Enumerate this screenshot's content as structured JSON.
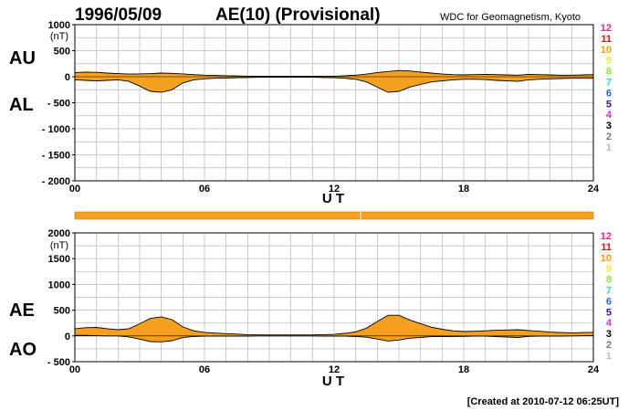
{
  "header": {
    "date": "1996/05/09",
    "title": "AE(10) (Provisional)",
    "source": "WDC for Geomagnetism, Kyoto"
  },
  "footer": {
    "created": "[Created at 2010-07-12 06:25UT]"
  },
  "colors": {
    "fill": "#f5a11f",
    "grid": "#b8b8b8",
    "axis": "#000000"
  },
  "legend": {
    "items": [
      {
        "label": "12",
        "color": "#ee2288"
      },
      {
        "label": "11",
        "color": "#dd1111"
      },
      {
        "label": "10",
        "color": "#ff9900"
      },
      {
        "label": "9",
        "color": "#eeee22"
      },
      {
        "label": "8",
        "color": "#88ee22"
      },
      {
        "label": "7",
        "color": "#22dddd"
      },
      {
        "label": "6",
        "color": "#1166ff"
      },
      {
        "label": "5",
        "color": "#3311bb"
      },
      {
        "label": "4",
        "color": "#ee22ee"
      },
      {
        "label": "3",
        "color": "#000000"
      },
      {
        "label": "2",
        "color": "#777777"
      },
      {
        "label": "1",
        "color": "#bbbbbb"
      }
    ]
  },
  "chart_data": [
    {
      "type": "area",
      "panel": "AU-AL",
      "side_labels": {
        "upper": "AU",
        "lower": "AL"
      },
      "unit": "(nT)",
      "xlabel": "U T",
      "ylim": [
        -2000,
        1000
      ],
      "yticks": [
        1000,
        500,
        0,
        -500,
        -1000,
        -1500,
        -2000
      ],
      "ytick_labels": [
        "1000",
        "500",
        "0",
        "- 500",
        "- 1000",
        "- 1500",
        "- 2000"
      ],
      "xlim": [
        0,
        24
      ],
      "xticks": [
        0,
        6,
        12,
        18,
        24
      ],
      "xtick_labels": [
        "00",
        "06",
        "12",
        "18",
        "24"
      ],
      "x": [
        0,
        0.5,
        1,
        1.5,
        2,
        2.5,
        3,
        3.5,
        4,
        4.5,
        5,
        5.5,
        6,
        6.5,
        7,
        7.5,
        8,
        8.5,
        9,
        9.5,
        10,
        10.5,
        11,
        11.5,
        12,
        12.5,
        13,
        13.5,
        14,
        14.5,
        15,
        15.5,
        16,
        16.5,
        17,
        17.5,
        18,
        18.5,
        19,
        19.5,
        20,
        20.5,
        21,
        21.5,
        22,
        22.5,
        23,
        23.5,
        24
      ],
      "series": [
        {
          "name": "AU",
          "values": [
            80,
            90,
            85,
            70,
            60,
            50,
            55,
            60,
            70,
            65,
            55,
            40,
            30,
            25,
            20,
            15,
            10,
            10,
            10,
            10,
            10,
            10,
            10,
            10,
            10,
            20,
            30,
            50,
            80,
            100,
            120,
            110,
            90,
            70,
            50,
            40,
            35,
            40,
            45,
            40,
            35,
            30,
            45,
            40,
            35,
            30,
            30,
            35,
            40
          ]
        },
        {
          "name": "AL",
          "values": [
            -60,
            -70,
            -80,
            -70,
            -60,
            -90,
            -180,
            -280,
            -300,
            -250,
            -120,
            -60,
            -40,
            -30,
            -25,
            -20,
            -15,
            -10,
            -10,
            -10,
            -10,
            -10,
            -10,
            -15,
            -20,
            -30,
            -50,
            -100,
            -200,
            -300,
            -280,
            -200,
            -150,
            -100,
            -80,
            -60,
            -50,
            -50,
            -55,
            -70,
            -80,
            -90,
            -60,
            -50,
            -40,
            -35,
            -30,
            -30,
            -30
          ]
        }
      ]
    },
    {
      "type": "area",
      "panel": "AE-AO",
      "side_labels": {
        "upper": "AE",
        "lower": "AO"
      },
      "unit": "(nT)",
      "xlabel": "U T",
      "ylim": [
        -500,
        2000
      ],
      "yticks": [
        2000,
        1500,
        1000,
        500,
        0,
        -500
      ],
      "ytick_labels": [
        "2000",
        "1500",
        "1000",
        "500",
        "0",
        "- 500"
      ],
      "xlim": [
        0,
        24
      ],
      "xticks": [
        0,
        6,
        12,
        18,
        24
      ],
      "xtick_labels": [
        "00",
        "06",
        "12",
        "18",
        "24"
      ],
      "x": [
        0,
        0.5,
        1,
        1.5,
        2,
        2.5,
        3,
        3.5,
        4,
        4.5,
        5,
        5.5,
        6,
        6.5,
        7,
        7.5,
        8,
        8.5,
        9,
        9.5,
        10,
        10.5,
        11,
        11.5,
        12,
        12.5,
        13,
        13.5,
        14,
        14.5,
        15,
        15.5,
        16,
        16.5,
        17,
        17.5,
        18,
        18.5,
        19,
        19.5,
        20,
        20.5,
        21,
        21.5,
        22,
        22.5,
        23,
        23.5,
        24
      ],
      "series": [
        {
          "name": "AE",
          "values": [
            140,
            160,
            165,
            140,
            120,
            140,
            235,
            340,
            370,
            315,
            175,
            100,
            70,
            55,
            45,
            35,
            25,
            20,
            20,
            20,
            20,
            20,
            20,
            25,
            30,
            50,
            80,
            150,
            280,
            400,
            400,
            310,
            240,
            170,
            130,
            100,
            85,
            90,
            100,
            110,
            115,
            120,
            105,
            90,
            75,
            65,
            60,
            65,
            70
          ]
        },
        {
          "name": "AO",
          "values": [
            10,
            10,
            3,
            0,
            0,
            -20,
            -62,
            -110,
            -115,
            -92,
            -32,
            -10,
            -5,
            -3,
            -3,
            -3,
            -3,
            0,
            0,
            0,
            0,
            0,
            0,
            -3,
            -5,
            -5,
            -10,
            -25,
            -60,
            -100,
            -80,
            -45,
            -30,
            -15,
            -15,
            -10,
            -8,
            -5,
            -5,
            -15,
            -22,
            -30,
            -8,
            -5,
            -3,
            -3,
            0,
            3,
            5
          ]
        }
      ]
    }
  ]
}
